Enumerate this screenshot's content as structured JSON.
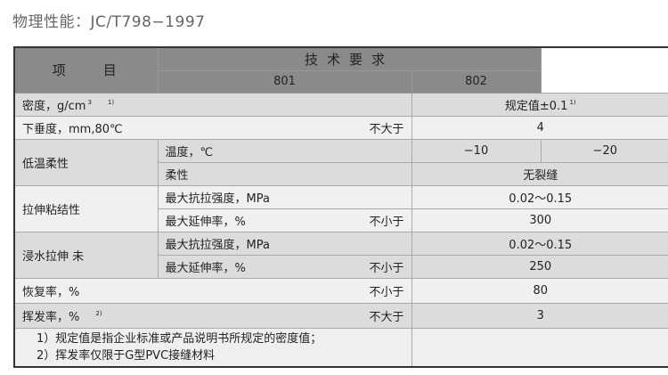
{
  "title": "物理性能：JC/T798−1997",
  "header": {
    "item": "项　　目",
    "req": "技术要求",
    "grade1": "801",
    "grade2": "802"
  },
  "rows": {
    "density": {
      "label": "密度，g/cm",
      "unit_sup": "3",
      "note": "1)",
      "value": "规定值±0.1",
      "value_note": "1)"
    },
    "sag": {
      "label": "下垂度，mm,80℃",
      "qual": "不大于",
      "value": "4"
    },
    "lowtemp": {
      "label": "低温柔性",
      "temp_label": "温度，℃",
      "temp1": "−10",
      "temp2": "−20",
      "flex_label": "柔性",
      "flex_value": "无裂缝"
    },
    "tensile": {
      "label": "拉伸粘结性",
      "strength_label": "最大抗拉强度，MPa",
      "strength_value": "0.02～0.15",
      "elong_label": "最大延伸率，%",
      "elong_qual": "不小于",
      "elong_value": "300"
    },
    "immersion": {
      "label": "浸水拉伸 未",
      "strength_label": "最大抗拉强度，MPa",
      "strength_value": "0.02～0.15",
      "elong_label": "最大延伸率，%",
      "elong_qual": "不小于",
      "elong_value": "250"
    },
    "recovery": {
      "label": "恢复率，%",
      "qual": "不小于",
      "value": "80"
    },
    "volatile": {
      "label": "挥发率，%",
      "note": "2)",
      "qual": "不大于",
      "value": "3"
    }
  },
  "footnotes": [
    "1）规定值是指企业标准或产品说明书所规定的密度值；",
    "2）挥发率仅限于G型PVC接缝材料"
  ]
}
